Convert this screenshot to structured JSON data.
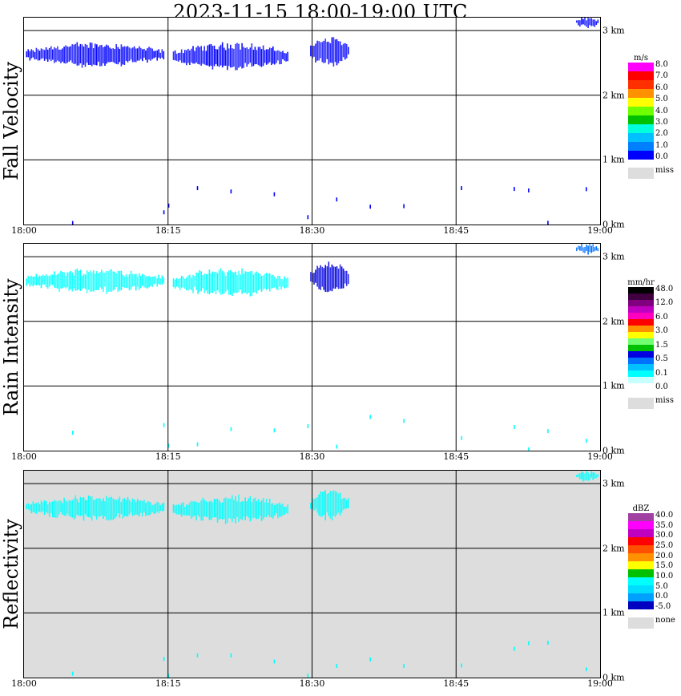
{
  "title": "2023-11-15   18:00-19:00 UTC",
  "x_ticks": [
    "18:00",
    "18:15",
    "18:30",
    "18:45",
    "19:00"
  ],
  "height_ticks": [
    "0 km",
    "1 km",
    "2 km",
    "3 km"
  ],
  "missing_color": "#dddddd",
  "chart_data": [
    {
      "type": "heatmap",
      "title": "Fall Velocity",
      "x_range": [
        "18:00",
        "19:00"
      ],
      "y_range_km": [
        0,
        3.2
      ],
      "grid": true,
      "legend_position": "right",
      "background": "#ffffff",
      "colorbar": {
        "unit": "m/s",
        "colors": [
          "#0000ff",
          "#0080ff",
          "#00c0ff",
          "#00ffdd",
          "#00c000",
          "#70ff00",
          "#ffff00",
          "#ff9000",
          "#ff3000",
          "#ff0000",
          "#ff00ff"
        ],
        "labels": [
          "8.0",
          "7.0",
          "6.0",
          "5.0",
          "4.0",
          "3.0",
          "2.0",
          "1.0",
          "0.0"
        ],
        "missing_label": "miss"
      },
      "echo_regions": [
        {
          "t0": 0.2,
          "t1": 14.5,
          "z0": 2.45,
          "z1": 2.8,
          "color": "#0000ff"
        },
        {
          "t0": 15.5,
          "t1": 27.5,
          "z0": 2.4,
          "z1": 2.8,
          "color": "#0000ff"
        },
        {
          "t0": 29.8,
          "t1": 33.8,
          "z0": 2.45,
          "z1": 2.9,
          "color": "#0000ff"
        },
        {
          "t0": 57.5,
          "t1": 59.8,
          "z0": 3.05,
          "z1": 3.2,
          "color": "#0000ff"
        }
      ]
    },
    {
      "type": "heatmap",
      "title": "Rain Intensity",
      "x_range": [
        "18:00",
        "19:00"
      ],
      "y_range_km": [
        0,
        3.2
      ],
      "grid": true,
      "legend_position": "right",
      "background": "#ffffff",
      "colorbar": {
        "unit": "mm/hr",
        "colors": [
          "#ffffff",
          "#c8ffff",
          "#00ffff",
          "#00c0ff",
          "#0070ff",
          "#0000e0",
          "#00c000",
          "#70ff70",
          "#ffff00",
          "#ff9000",
          "#ff0000",
          "#ff00c0",
          "#c000c0",
          "#800080",
          "#400040",
          "#000000"
        ],
        "labels": [
          "48.0",
          "12.0",
          "6.0",
          "3.0",
          "1.5",
          "0.5",
          "0.1",
          "0.0"
        ],
        "missing_label": "miss"
      },
      "echo_regions": [
        {
          "t0": 0.2,
          "t1": 14.5,
          "z0": 2.45,
          "z1": 2.8,
          "color": "#00ffff"
        },
        {
          "t0": 15.5,
          "t1": 27.5,
          "z0": 2.4,
          "z1": 2.8,
          "color": "#00ffff"
        },
        {
          "t0": 29.8,
          "t1": 33.8,
          "z0": 2.45,
          "z1": 2.9,
          "color": "#0000e0"
        },
        {
          "t0": 57.5,
          "t1": 59.8,
          "z0": 3.05,
          "z1": 3.2,
          "color": "#0070ff"
        }
      ]
    },
    {
      "type": "heatmap",
      "title": "Reflectivity",
      "x_range": [
        "18:00",
        "19:00"
      ],
      "y_range_km": [
        0,
        3.2
      ],
      "grid": true,
      "legend_position": "right",
      "background": "#dddddd",
      "colorbar": {
        "unit": "dBZ",
        "colors": [
          "#0000c0",
          "#00a0ff",
          "#00ddff",
          "#00ffff",
          "#00c000",
          "#ffff00",
          "#ff9000",
          "#ff5000",
          "#ff0000",
          "#c000c0",
          "#ff00ff",
          "#a040a0"
        ],
        "labels": [
          "40.0",
          "35.0",
          "30.0",
          "25.0",
          "20.0",
          "15.0",
          "10.0",
          "5.0",
          "0.0",
          "-5.0"
        ],
        "missing_label": "none"
      },
      "echo_regions": [
        {
          "t0": 0.2,
          "t1": 14.5,
          "z0": 2.45,
          "z1": 2.8,
          "color": "#00ffff"
        },
        {
          "t0": 15.5,
          "t1": 27.5,
          "z0": 2.4,
          "z1": 2.8,
          "color": "#00ffff"
        },
        {
          "t0": 29.8,
          "t1": 33.8,
          "z0": 2.45,
          "z1": 2.9,
          "color": "#00ffff"
        },
        {
          "t0": 57.5,
          "t1": 59.8,
          "z0": 3.05,
          "z1": 3.2,
          "color": "#00ffff"
        }
      ]
    }
  ]
}
